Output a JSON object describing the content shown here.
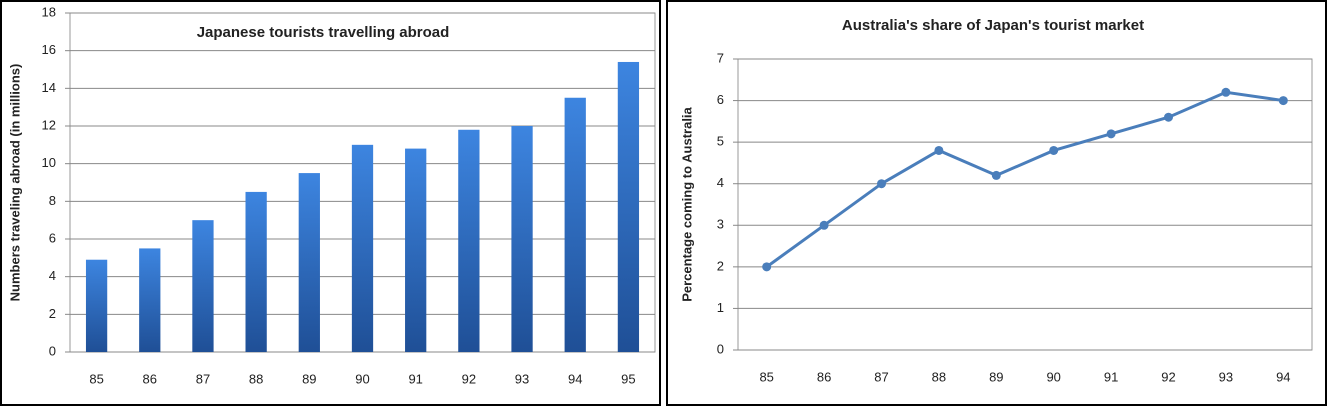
{
  "chart_data": [
    {
      "type": "bar",
      "title": "Japanese tourists travelling abroad",
      "y_label": "Numbers traveling abroad (in millions)",
      "categories": [
        "85",
        "86",
        "87",
        "88",
        "89",
        "90",
        "91",
        "92",
        "93",
        "94",
        "95"
      ],
      "values": [
        4.9,
        5.5,
        7.0,
        8.5,
        9.5,
        11.0,
        10.8,
        11.8,
        12.0,
        13.5,
        15.4
      ],
      "color": "#2f6fc7",
      "ylim": [
        0,
        18
      ],
      "yticks": [
        0,
        2,
        4,
        6,
        8,
        10,
        12,
        14,
        16,
        18
      ],
      "grid": true
    },
    {
      "type": "line",
      "title": "Australia's share of Japan's tourist market",
      "y_label": "Percentage coming to Australia",
      "categories": [
        "85",
        "86",
        "87",
        "88",
        "89",
        "90",
        "91",
        "92",
        "93",
        "94"
      ],
      "values": [
        2,
        3,
        4,
        4.8,
        4.2,
        4.8,
        5.2,
        5.6,
        6.2,
        6.0
      ],
      "color": "#4a7ebb",
      "ylim": [
        0,
        7
      ],
      "yticks": [
        0,
        1,
        2,
        3,
        4,
        5,
        6,
        7
      ],
      "grid": true
    }
  ]
}
